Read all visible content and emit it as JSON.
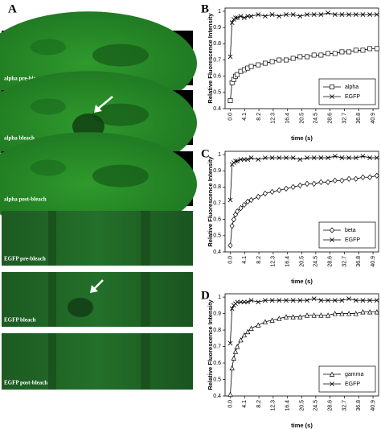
{
  "panel_a": {
    "label": "A",
    "images": [
      {
        "caption": "alpha pre-bleach"
      },
      {
        "caption": "alpha bleach"
      },
      {
        "caption": "alpha post-bleach"
      },
      {
        "caption": "EGFP pre-bleach"
      },
      {
        "caption": "EGFP bleach"
      },
      {
        "caption": "EGFP post-bleach"
      }
    ]
  },
  "chart_data": [
    {
      "type": "line",
      "panel_label": "B",
      "x_label": "time (s)",
      "y_label": "Relative Fluorescence Intensity",
      "x": [
        0,
        0.5,
        1,
        1.5,
        2,
        3,
        4,
        5,
        6,
        8,
        10,
        12,
        14,
        16,
        18,
        20,
        22,
        24,
        26,
        28,
        30,
        32,
        34,
        36,
        38,
        40,
        42
      ],
      "series": [
        {
          "name": "alpha",
          "color": "#000000",
          "marker": "square",
          "values": [
            0.45,
            0.56,
            0.58,
            0.6,
            0.61,
            0.63,
            0.64,
            0.65,
            0.66,
            0.67,
            0.68,
            0.69,
            0.7,
            0.7,
            0.71,
            0.72,
            0.72,
            0.73,
            0.73,
            0.74,
            0.74,
            0.75,
            0.75,
            0.76,
            0.76,
            0.77,
            0.77
          ]
        },
        {
          "name": "EGFP",
          "color": "#000000",
          "marker": "x",
          "values": [
            0.72,
            0.93,
            0.95,
            0.96,
            0.96,
            0.97,
            0.96,
            0.97,
            0.97,
            0.98,
            0.97,
            0.98,
            0.97,
            0.98,
            0.98,
            0.97,
            0.98,
            0.98,
            0.98,
            0.99,
            0.98,
            0.98,
            0.98,
            0.98,
            0.98,
            0.98,
            0.98
          ]
        }
      ],
      "xlim": [
        -1.5,
        42.5
      ],
      "ylim": [
        0.4,
        1.02
      ],
      "xticks": [
        {
          "value": 0,
          "label": "0.0"
        },
        4.1,
        8.2,
        12.3,
        16.4,
        20.5,
        24.5,
        28.6,
        32.7,
        36.8,
        40.9
      ],
      "yticks": [
        0.4,
        0.5,
        0.6,
        0.7,
        0.8,
        0.9,
        1
      ],
      "legend": "lower right"
    },
    {
      "type": "line",
      "panel_label": "C",
      "x_label": "time (s)",
      "y_label": "Relative Fluorescence Intensity",
      "x": [
        0,
        0.5,
        1,
        1.5,
        2,
        3,
        4,
        5,
        6,
        8,
        10,
        12,
        14,
        16,
        18,
        20,
        22,
        24,
        26,
        28,
        30,
        32,
        34,
        36,
        38,
        40,
        42
      ],
      "series": [
        {
          "name": "beta",
          "color": "#000000",
          "marker": "diamond",
          "values": [
            0.44,
            0.56,
            0.6,
            0.63,
            0.65,
            0.67,
            0.69,
            0.71,
            0.72,
            0.74,
            0.76,
            0.77,
            0.78,
            0.79,
            0.8,
            0.81,
            0.82,
            0.82,
            0.83,
            0.83,
            0.84,
            0.84,
            0.85,
            0.85,
            0.86,
            0.86,
            0.87
          ]
        },
        {
          "name": "EGFP",
          "color": "#000000",
          "marker": "x",
          "values": [
            0.72,
            0.94,
            0.95,
            0.96,
            0.96,
            0.97,
            0.97,
            0.97,
            0.98,
            0.97,
            0.98,
            0.98,
            0.98,
            0.98,
            0.98,
            0.97,
            0.98,
            0.98,
            0.98,
            0.98,
            0.99,
            0.98,
            0.98,
            0.98,
            0.99,
            0.98,
            0.98
          ]
        }
      ],
      "xlim": [
        -1.5,
        42.5
      ],
      "ylim": [
        0.4,
        1.02
      ],
      "xticks": [
        {
          "value": 0,
          "label": "0.0"
        },
        4.1,
        8.2,
        12.3,
        16.4,
        20.5,
        24.5,
        28.6,
        32.7,
        36.8,
        40.9
      ],
      "yticks": [
        0.4,
        0.5,
        0.6,
        0.7,
        0.8,
        0.9,
        1
      ],
      "legend": "lower right"
    },
    {
      "type": "line",
      "panel_label": "D",
      "x_label": "time (s)",
      "y_label": "Relative Fluorescence Intensity",
      "x": [
        0,
        0.5,
        1,
        1.5,
        2,
        3,
        4,
        5,
        6,
        8,
        10,
        12,
        14,
        16,
        18,
        20,
        22,
        24,
        26,
        28,
        30,
        32,
        34,
        36,
        38,
        40,
        42
      ],
      "series": [
        {
          "name": "gamma",
          "color": "#000000",
          "marker": "triangle",
          "values": [
            0.41,
            0.57,
            0.63,
            0.67,
            0.7,
            0.74,
            0.77,
            0.79,
            0.81,
            0.83,
            0.85,
            0.86,
            0.87,
            0.88,
            0.88,
            0.88,
            0.89,
            0.89,
            0.89,
            0.89,
            0.9,
            0.9,
            0.9,
            0.9,
            0.91,
            0.91,
            0.91
          ]
        },
        {
          "name": "EGFP",
          "color": "#000000",
          "marker": "x",
          "values": [
            0.72,
            0.93,
            0.95,
            0.96,
            0.97,
            0.97,
            0.97,
            0.97,
            0.98,
            0.97,
            0.98,
            0.98,
            0.98,
            0.98,
            0.98,
            0.98,
            0.98,
            0.99,
            0.98,
            0.98,
            0.98,
            0.98,
            0.99,
            0.98,
            0.98,
            0.98,
            0.98
          ]
        }
      ],
      "xlim": [
        -1.5,
        42.5
      ],
      "ylim": [
        0.4,
        1.02
      ],
      "xticks": [
        {
          "value": 0,
          "label": "0.0"
        },
        4.1,
        8.2,
        12.3,
        16.4,
        20.5,
        24.5,
        28.6,
        32.7,
        36.8,
        40.9
      ],
      "yticks": [
        0.4,
        0.5,
        0.6,
        0.7,
        0.8,
        0.9,
        1
      ],
      "legend": "lower right"
    }
  ]
}
